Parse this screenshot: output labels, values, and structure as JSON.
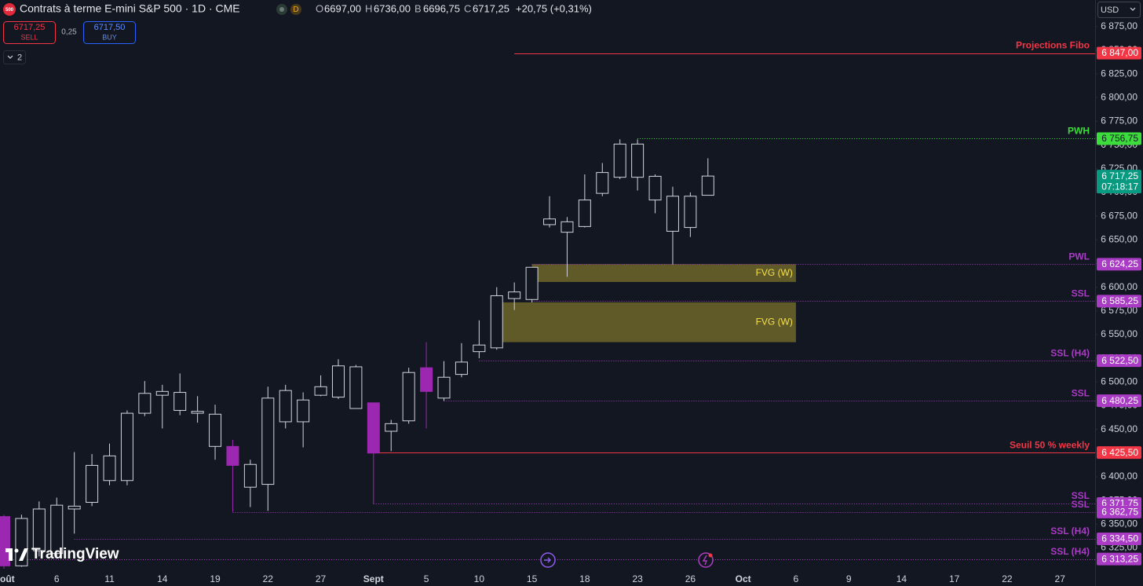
{
  "chart_data": {
    "type": "candlestick",
    "title": "Contrats à terme E-mini S&P 500 · 1D · CME",
    "categories": [
      "oût",
      null,
      null,
      "6",
      null,
      null,
      "11",
      null,
      null,
      "14",
      null,
      null,
      "19",
      null,
      null,
      "22",
      null,
      null,
      "27",
      null,
      null,
      "Sept",
      null,
      null,
      "5",
      null,
      null,
      "10",
      null,
      null,
      "15",
      null,
      null,
      "18",
      null,
      null,
      "23",
      null,
      null,
      "26",
      null,
      null,
      "Oct",
      null,
      null,
      "6",
      null,
      null,
      "9",
      null,
      null,
      "14",
      null,
      null,
      "17",
      null,
      null,
      "22",
      null,
      null,
      "27",
      null
    ],
    "open": [
      6358,
      6306,
      6322,
      6319,
      6366,
      6373,
      6396,
      6396,
      6467,
      6486,
      6470,
      6467,
      6432,
      6432,
      6389,
      6392,
      6458,
      6458,
      6486,
      6484,
      6472,
      6478,
      6448,
      6459,
      6515,
      6483,
      6508,
      6532,
      6536,
      6588,
      6587,
      6666,
      6658,
      6664,
      6699,
      6716,
      6716,
      6692,
      6659,
      6663,
      6697,
      null,
      null,
      null,
      null,
      null,
      null,
      null,
      null,
      null,
      null,
      null,
      null,
      null,
      null,
      null,
      null,
      null,
      null,
      null,
      null,
      null
    ],
    "high": [
      6360,
      6360,
      6374,
      6378,
      6426,
      6424,
      6435,
      6470,
      6501,
      6497,
      6509,
      6485,
      6476,
      6439,
      6418,
      6495,
      6497,
      6489,
      6507,
      6524,
      6518,
      6478,
      6460,
      6515,
      6542,
      6522,
      6541,
      6565,
      6600,
      6605,
      6621,
      6696,
      6674,
      6719,
      6731,
      6756,
      6756,
      6719,
      6706,
      6700,
      6736,
      null,
      null,
      null,
      null,
      null,
      null,
      null,
      null,
      null,
      null,
      null,
      null,
      null,
      null,
      null,
      null,
      null,
      null,
      null,
      null,
      null
    ],
    "low": [
      6303,
      6305,
      6316,
      6315,
      6340,
      6369,
      6391,
      6391,
      6464,
      6451,
      6465,
      6457,
      6418,
      6363,
      6368,
      6364,
      6451,
      6431,
      6485,
      6482,
      6472,
      6371,
      6427,
      6456,
      6451,
      6480,
      6505,
      6525,
      6534,
      6576,
      6584,
      6663,
      6611,
      6663,
      6696,
      6714,
      6702,
      6678,
      6624,
      6653,
      6696.75,
      null,
      null,
      null,
      null,
      null,
      null,
      null,
      null,
      null,
      null,
      null,
      null,
      null,
      null,
      null,
      null,
      null,
      null,
      null,
      null,
      null
    ],
    "close": [
      6306,
      6356,
      6366,
      6370,
      6369,
      6412,
      6422,
      6467,
      6488,
      6490,
      6489,
      6469,
      6466,
      6412,
      6413,
      6483,
      6491,
      6481,
      6495,
      6517,
      6516,
      6425,
      6456,
      6510,
      6490,
      6505,
      6521,
      6539,
      6591,
      6595,
      6621,
      6672,
      6669,
      6692,
      6721,
      6751,
      6751,
      6717,
      6696,
      6696,
      6717.25,
      null,
      null,
      null,
      null,
      null,
      null,
      null,
      null,
      null,
      null,
      null,
      null,
      null,
      null,
      null,
      null,
      null,
      null,
      null,
      null,
      null
    ],
    "up_color": "#d1d4dc",
    "down_color": "#9c27b0",
    "ylim": [
      6298,
      6903
    ],
    "yticks": [
      {
        "value": 6875,
        "label": "6 875,00"
      },
      {
        "value": 6850,
        "label": "6 850,00"
      },
      {
        "value": 6825,
        "label": "6 825,00"
      },
      {
        "value": 6800,
        "label": "6 800,00"
      },
      {
        "value": 6775,
        "label": "6 775,00"
      },
      {
        "value": 6750,
        "label": "6 750,00"
      },
      {
        "value": 6725,
        "label": "6 725,00"
      },
      {
        "value": 6700,
        "label": "6 700,00"
      },
      {
        "value": 6675,
        "label": "6 675,00"
      },
      {
        "value": 6650,
        "label": "6 650,00"
      },
      {
        "value": 6625,
        "label": "6 625,00"
      },
      {
        "value": 6600,
        "label": "6 600,00"
      },
      {
        "value": 6575,
        "label": "6 575,00"
      },
      {
        "value": 6550,
        "label": "6 550,00"
      },
      {
        "value": 6525,
        "label": "6 525,00"
      },
      {
        "value": 6500,
        "label": "6 500,00"
      },
      {
        "value": 6475,
        "label": "6 475,00"
      },
      {
        "value": 6450,
        "label": "6 450,00"
      },
      {
        "value": 6425,
        "label": "6 425,00"
      },
      {
        "value": 6400,
        "label": "6 400,00"
      },
      {
        "value": 6375,
        "label": "6 375,00"
      },
      {
        "value": 6350,
        "label": "6 350,00"
      },
      {
        "value": 6325,
        "label": "6 325,00"
      }
    ],
    "grid": false,
    "levels": [
      {
        "label": "Projections Fibo",
        "value": 6847,
        "value_label": "6 847,00",
        "color": "#f23645",
        "style": "solid",
        "anchor": 29
      },
      {
        "label": "PWH",
        "value": 6756.75,
        "value_label": "6 756,75",
        "color": "#3ddc3d",
        "style": "dotted",
        "anchor": 36
      },
      {
        "label": "PWL",
        "value": 6624.25,
        "value_label": "6 624,25",
        "color": "#a93bc4",
        "style": "dotted",
        "anchor": 30
      },
      {
        "label": "SSL",
        "value": 6585.25,
        "value_label": "6 585,25",
        "color": "#a93bc4",
        "style": "dotted",
        "anchor": 30
      },
      {
        "label": "SSL (H4)",
        "value": 6522.5,
        "value_label": "6 522,50",
        "color": "#a93bc4",
        "style": "dotted",
        "anchor": 27
      },
      {
        "label": "SSL",
        "value": 6480.25,
        "value_label": "6 480,25",
        "color": "#a93bc4",
        "style": "dotted",
        "anchor": 25
      },
      {
        "label": "Seuil 50 % weekly",
        "value": 6425.5,
        "value_label": "6 425,50",
        "color": "#f23645",
        "style": "solid",
        "anchor": 21
      },
      {
        "label": "SSL",
        "value": 6371.75,
        "value_label": "6 371,75",
        "color": "#a93bc4",
        "style": "dotted",
        "anchor": 21
      },
      {
        "label": "SSL",
        "value": 6362.75,
        "value_label": "6 362,75",
        "color": "#a93bc4",
        "style": "dotted",
        "anchor": 13
      },
      {
        "label": "SSL (H4)",
        "value": 6334.5,
        "value_label": "6 334,50",
        "color": "#a93bc4",
        "style": "dotted",
        "anchor": 4
      },
      {
        "label": "SSL (H4)",
        "value": 6313.25,
        "value_label": "6 313,25",
        "color": "#a93bc4",
        "style": "dotted",
        "anchor": 0
      }
    ],
    "zones": [
      {
        "label": "FVG (W)",
        "top": 6624.25,
        "bottom": 6605.5,
        "anchor": 30,
        "end": 45,
        "color": "#5f5a27",
        "text_color": "#f5e04a"
      },
      {
        "label": "FVG (W)",
        "top": 6584,
        "bottom": 6542,
        "anchor": 28,
        "end": 45,
        "color": "#5f5a27",
        "text_color": "#f5e04a"
      }
    ],
    "last_price": {
      "value": 6717.25,
      "label": "6 717,25",
      "countdown": "07:18:17",
      "color": "#089981"
    }
  },
  "toolbar": {
    "symbol_icon": "500",
    "interval_badge": "D",
    "ohlc": [
      {
        "label": "O",
        "value": "6697,00"
      },
      {
        "label": "H",
        "value": "6736,00"
      },
      {
        "label": "B",
        "value": "6696,75"
      },
      {
        "label": "C",
        "value": "6717,25"
      }
    ],
    "change": "+20,75 (+0,31%)",
    "sell": {
      "price": "6717,25",
      "label": "SELL"
    },
    "spread": "0,25",
    "buy": {
      "price": "6717,50",
      "label": "BUY"
    },
    "indicators": "2",
    "currency": "USD",
    "logo": "TradingView"
  }
}
